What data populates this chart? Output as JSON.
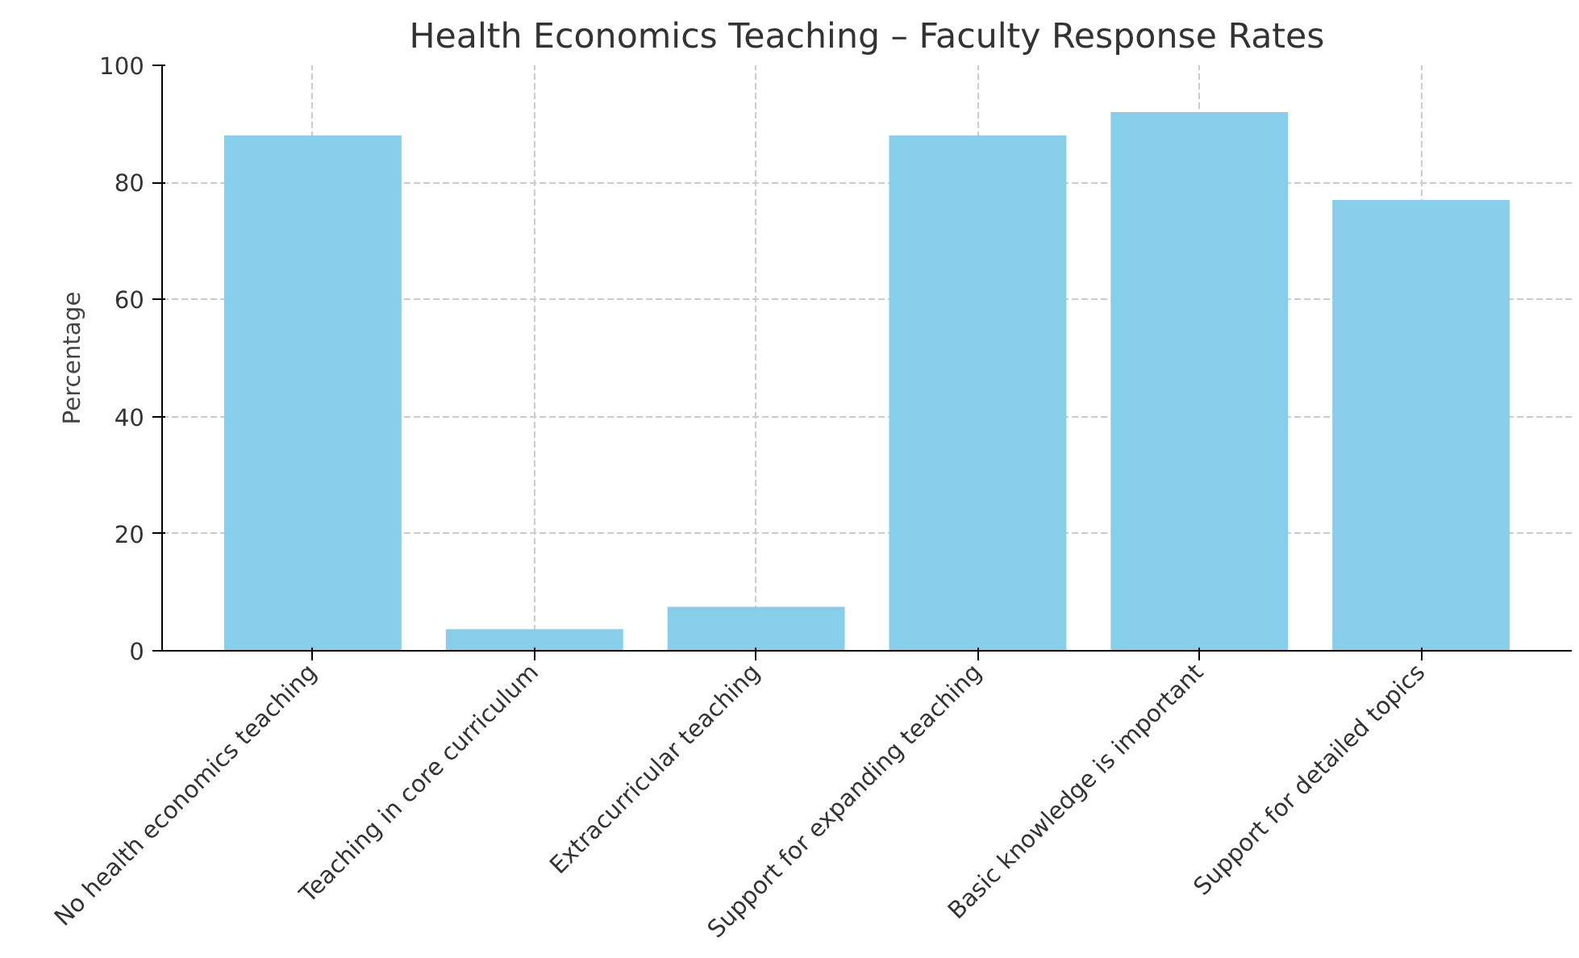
{
  "chart_data": {
    "type": "bar",
    "title": "Health Economics Teaching – Faculty Response Rates",
    "ylabel": "Percentage",
    "categories": [
      "No health economics teaching",
      "Teaching in core curriculum",
      "Extracurricular teaching",
      "Support for expanding teaching",
      "Basic knowledge is important",
      "Support for detailed topics"
    ],
    "values": [
      88,
      3.7,
      7.5,
      88,
      92,
      77
    ],
    "color": "#87ceeb",
    "ylim": [
      0,
      100
    ],
    "yticks": [
      0,
      20,
      40,
      60,
      80,
      100
    ],
    "grid": true
  }
}
